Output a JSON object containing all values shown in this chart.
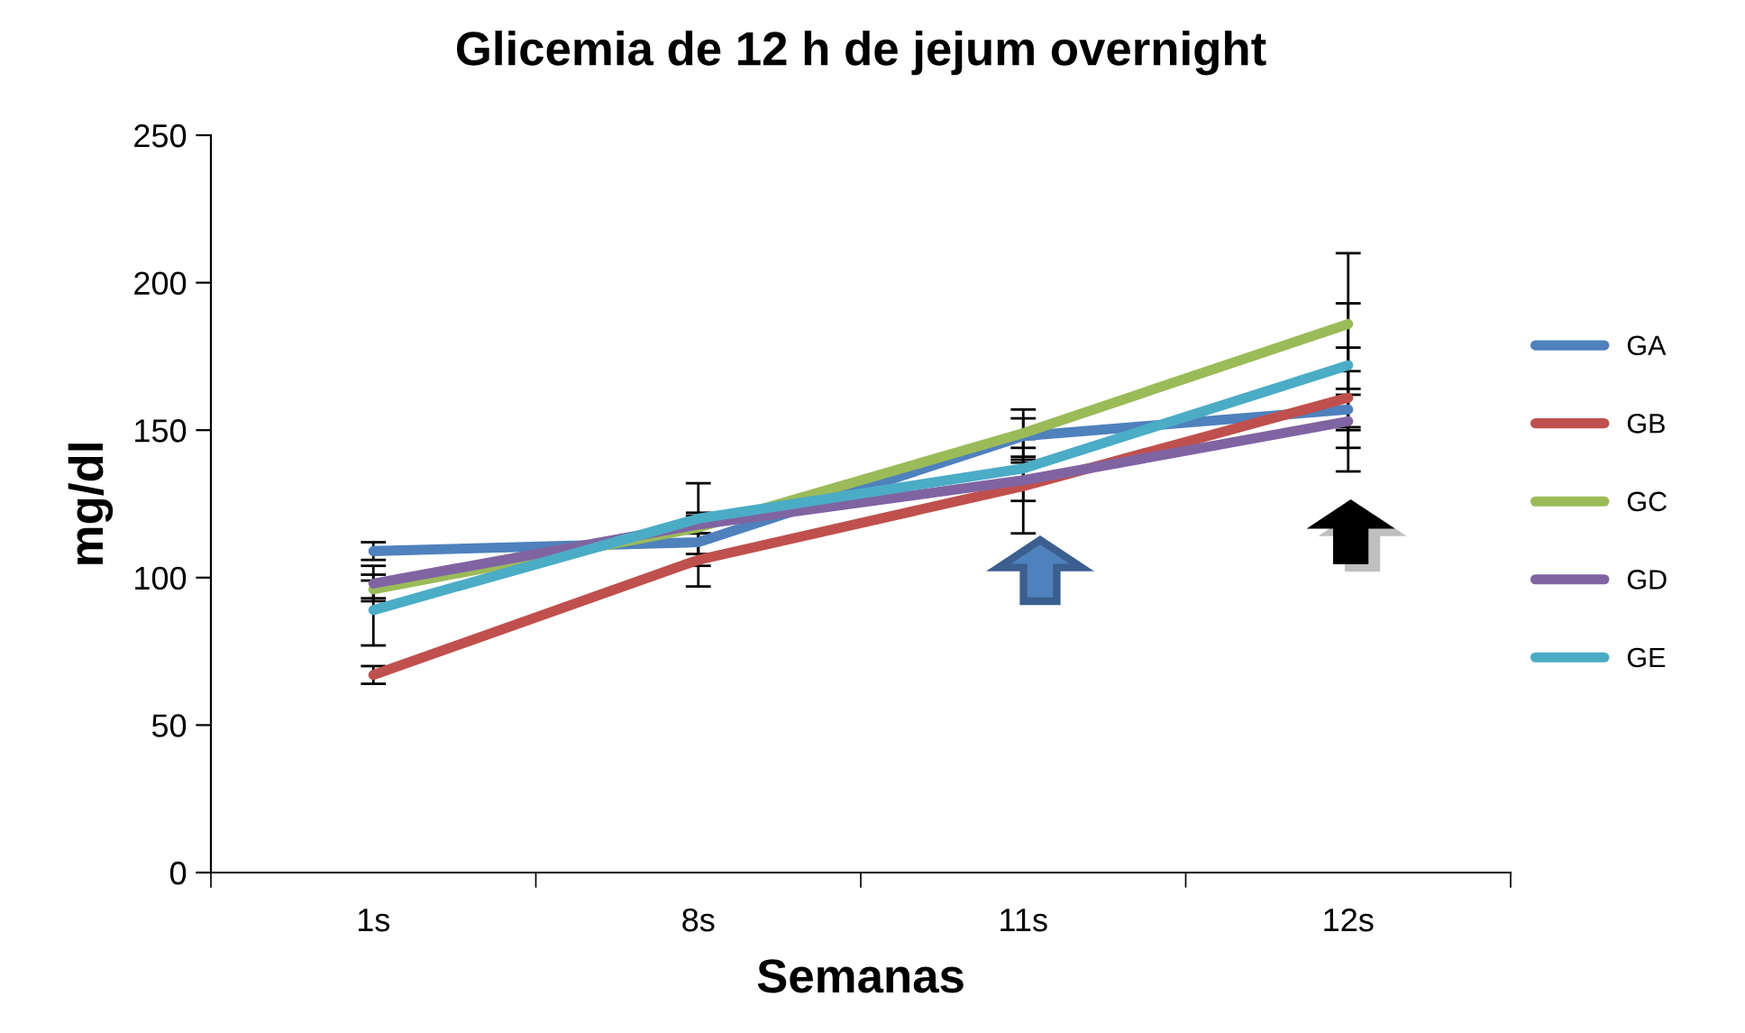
{
  "chart_data": {
    "type": "line",
    "title": "Glicemia de 12 h de jejum overnight",
    "xlabel": "Semanas",
    "ylabel": "mg/dl",
    "categories": [
      "1s",
      "8s",
      "11s",
      "12s"
    ],
    "series": [
      {
        "name": "GA",
        "color": "#4f81bd",
        "values": [
          109,
          112,
          148,
          157
        ],
        "errors": [
          3,
          8,
          9,
          7
        ]
      },
      {
        "name": "GB",
        "color": "#c0504d",
        "values": [
          67,
          106,
          131,
          161
        ],
        "errors": [
          3,
          9,
          16,
          17
        ]
      },
      {
        "name": "GC",
        "color": "#9bbb59",
        "values": [
          96,
          117,
          149,
          186
        ],
        "errors": [
          3,
          5,
          5,
          24
        ]
      },
      {
        "name": "GD",
        "color": "#8064a2",
        "values": [
          98,
          118,
          133,
          153
        ],
        "errors": [
          6,
          3,
          7,
          17
        ]
      },
      {
        "name": "GE",
        "color": "#4bacc6",
        "values": [
          89,
          120,
          137,
          172
        ],
        "errors": [
          12,
          12,
          4,
          21
        ]
      }
    ],
    "ylim": [
      0,
      250
    ],
    "yticks": [
      0,
      50,
      100,
      150,
      200,
      250
    ],
    "grid": false,
    "legend": "right",
    "marker": "none",
    "line_style": "solid"
  }
}
